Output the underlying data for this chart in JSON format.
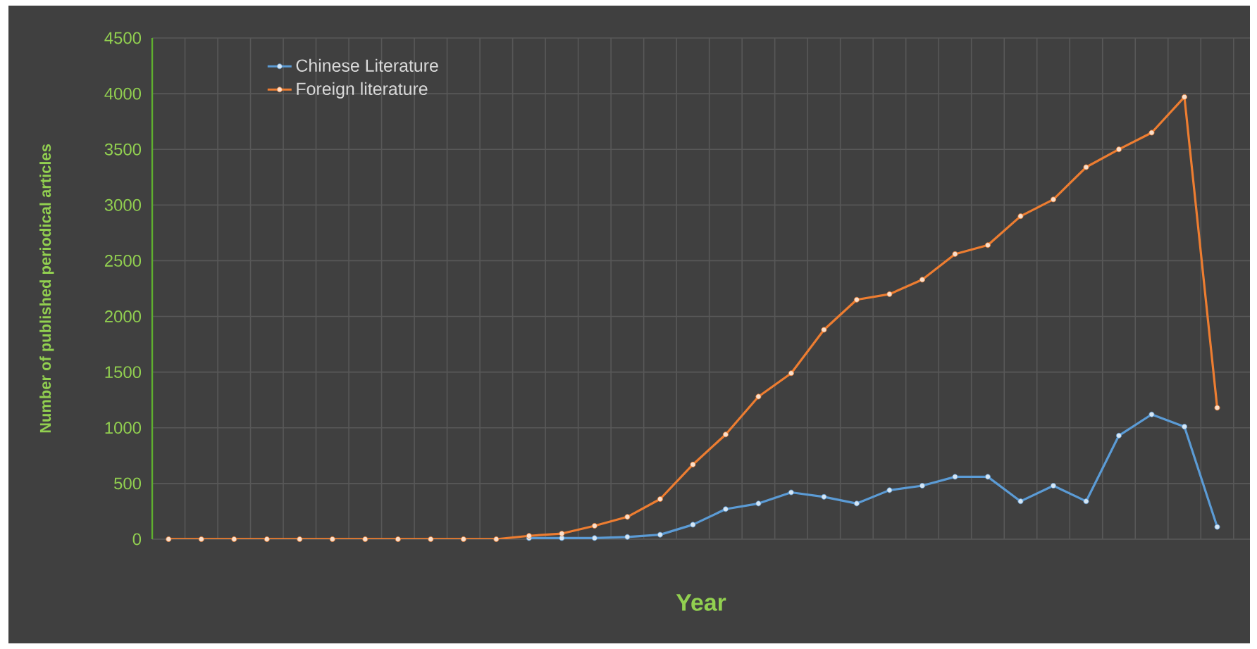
{
  "chart_data": {
    "type": "line",
    "xlabel": "Year",
    "ylabel": "Number of published  periodical articles",
    "categories": [
      null,
      null,
      null,
      null,
      null,
      null,
      null,
      null,
      null,
      null,
      null,
      null,
      null,
      null,
      null,
      null,
      null,
      null,
      null,
      null,
      null,
      null,
      null,
      null,
      null,
      null,
      null,
      null,
      null,
      null,
      null,
      null,
      null
    ],
    "series": [
      {
        "name": "Chinese Literature",
        "color": "#5b9bd5",
        "values": [
          null,
          null,
          null,
          null,
          null,
          null,
          null,
          null,
          null,
          null,
          null,
          10,
          10,
          10,
          20,
          40,
          130,
          270,
          320,
          420,
          380,
          320,
          440,
          480,
          560,
          560,
          340,
          480,
          340,
          930,
          1120,
          1010,
          110
        ]
      },
      {
        "name": "Foreign literature",
        "color": "#ed7d31",
        "values": [
          0,
          0,
          0,
          0,
          0,
          0,
          0,
          0,
          0,
          0,
          0,
          30,
          50,
          120,
          200,
          360,
          670,
          940,
          1280,
          1490,
          1880,
          2150,
          2200,
          2330,
          2560,
          2640,
          2900,
          3050,
          3340,
          3500,
          3650,
          3970,
          1180
        ]
      }
    ],
    "ylim": [
      0,
      4500
    ],
    "yticks": [
      0,
      500,
      1000,
      1500,
      2000,
      2500,
      3000,
      3500,
      4000,
      4500
    ],
    "grid": true,
    "legend": "top left",
    "marker": "circle",
    "line_style": "solid",
    "tick_labels": "y"
  }
}
